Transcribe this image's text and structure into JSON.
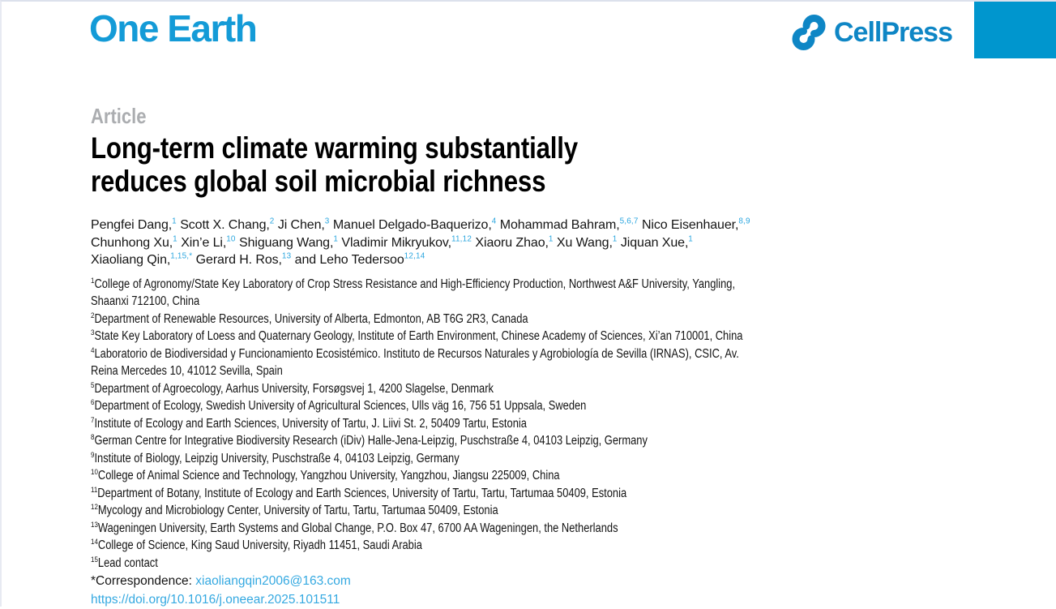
{
  "colors": {
    "one_earth_blue": "#149bd7",
    "cellpress_blue": "#0e86c5",
    "banner_blue": "#0096ce",
    "link_blue": "#35a9e1",
    "superscript_blue": "#2ba6df",
    "kicker_gray": "#abadb0"
  },
  "header": {
    "journal_logo": "One Earth",
    "publisher_logo": "CellPress",
    "publisher_icon": "cellpress-loop-icon"
  },
  "article": {
    "kicker": "Article",
    "title_lines": [
      "Long-term climate warming substantially",
      "reduces global soil microbial richness"
    ]
  },
  "authors": {
    "lines": [
      [
        {
          "name": "Pengfei Dang,",
          "sup": "1"
        },
        {
          "name": "Scott X. Chang,",
          "sup": "2"
        },
        {
          "name": "Ji Chen,",
          "sup": "3"
        },
        {
          "name": "Manuel Delgado-Baquerizo,",
          "sup": "4"
        },
        {
          "name": "Mohammad Bahram,",
          "sup": "5,6,7"
        },
        {
          "name": "Nico Eisenhauer,",
          "sup": "8,9"
        }
      ],
      [
        {
          "name": "Chunhong Xu,",
          "sup": "1"
        },
        {
          "name": "Xin’e Li,",
          "sup": "10"
        },
        {
          "name": "Shiguang Wang,",
          "sup": "1"
        },
        {
          "name": "Vladimir Mikryukov,",
          "sup": "11,12"
        },
        {
          "name": "Xiaoru Zhao,",
          "sup": "1"
        },
        {
          "name": "Xu Wang,",
          "sup": "1"
        },
        {
          "name": "Jiquan Xue,",
          "sup": "1"
        }
      ],
      [
        {
          "name": "Xiaoliang Qin,",
          "sup": "1,15,*"
        },
        {
          "name": "Gerard H. Ros,",
          "sup": "13"
        },
        {
          "name": "and Leho Tedersoo",
          "sup": "12,14"
        }
      ]
    ]
  },
  "affiliations": [
    {
      "sup": "1",
      "lines": [
        "College of Agronomy/State Key Laboratory of Crop Stress Resistance and High-Efficiency Production, Northwest A&F University, Yangling,",
        "Shaanxi 712100, China"
      ]
    },
    {
      "sup": "2",
      "lines": [
        "Department of Renewable Resources, University of Alberta, Edmonton, AB T6G 2R3, Canada"
      ]
    },
    {
      "sup": "3",
      "lines": [
        "State Key Laboratory of Loess and Quaternary Geology, Institute of Earth Environment, Chinese Academy of Sciences, Xi’an 710001, China"
      ]
    },
    {
      "sup": "4",
      "lines": [
        "Laboratorio de Biodiversidad y Funcionamiento Ecosistémico. Instituto de Recursos Naturales y Agrobiología de Sevilla (IRNAS), CSIC, Av.",
        "Reina Mercedes 10, 41012 Sevilla, Spain"
      ]
    },
    {
      "sup": "5",
      "lines": [
        "Department of Agroecology, Aarhus University, Forsøgsvej 1, 4200 Slagelse, Denmark"
      ]
    },
    {
      "sup": "6",
      "lines": [
        "Department of Ecology, Swedish University of Agricultural Sciences, Ulls väg 16, 756 51 Uppsala, Sweden"
      ]
    },
    {
      "sup": "7",
      "lines": [
        "Institute of Ecology and Earth Sciences, University of Tartu, J. Liivi St. 2, 50409 Tartu, Estonia"
      ]
    },
    {
      "sup": "8",
      "lines": [
        "German Centre for Integrative Biodiversity Research (iDiv) Halle-Jena-Leipzig, Puschstraße 4, 04103 Leipzig, Germany"
      ]
    },
    {
      "sup": "9",
      "lines": [
        "Institute of Biology, Leipzig University, Puschstraße 4, 04103 Leipzig, Germany"
      ]
    },
    {
      "sup": "10",
      "lines": [
        "College of Animal Science and Technology, Yangzhou University, Yangzhou, Jiangsu 225009, China"
      ]
    },
    {
      "sup": "11",
      "lines": [
        "Department of Botany, Institute of Ecology and Earth Sciences, University of Tartu, Tartu, Tartumaa 50409, Estonia"
      ]
    },
    {
      "sup": "12",
      "lines": [
        "Mycology and Microbiology Center, University of Tartu, Tartu, Tartumaa 50409, Estonia"
      ]
    },
    {
      "sup": "13",
      "lines": [
        "Wageningen University, Earth Systems and Global Change, P.O. Box 47, 6700 AA Wageningen, the Netherlands"
      ]
    },
    {
      "sup": "14",
      "lines": [
        "College of Science, King Saud University, Riyadh 11451, Saudi Arabia"
      ]
    },
    {
      "sup": "15",
      "lines": [
        "Lead contact"
      ]
    }
  ],
  "footnotes": {
    "correspondence_label": "*Correspondence:",
    "correspondence_email": "xiaoliangqin2006@163.com",
    "doi": "https://doi.org/10.1016/j.oneear.2025.101511"
  }
}
